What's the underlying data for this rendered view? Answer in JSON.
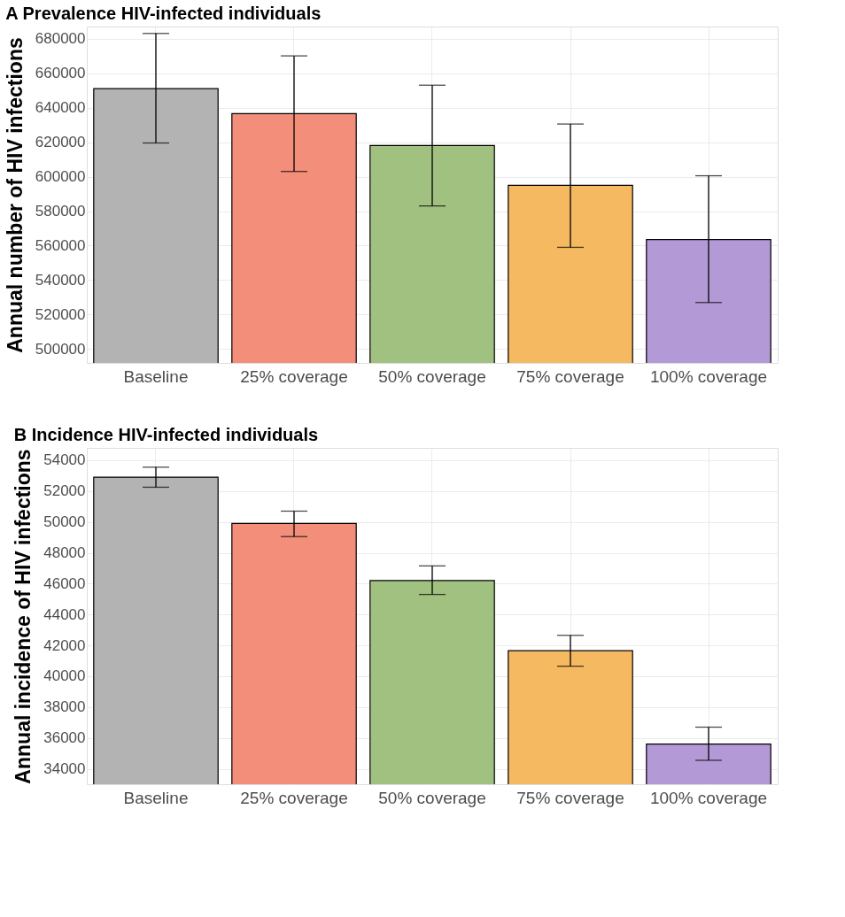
{
  "chart_data": [
    {
      "type": "bar",
      "title": "A  Prevalence HIV-infected individuals",
      "ylabel": "Annual number of HIV infections",
      "categories": [
        "Baseline",
        "25% coverage",
        "50% coverage",
        "75% coverage",
        "100% coverage"
      ],
      "values": [
        651000,
        636500,
        618000,
        595000,
        563500
      ],
      "colors": [
        "#b3b3b3",
        "#f28e7a",
        "#a1c181",
        "#f5b961",
        "#b39ad6"
      ],
      "errors": [
        [
          619500,
          683000
        ],
        [
          603000,
          670000
        ],
        [
          583000,
          653000
        ],
        [
          559000,
          630500
        ],
        [
          527000,
          600500
        ]
      ],
      "ylim": [
        492000,
        687000
      ],
      "yticks": [
        500000,
        520000,
        540000,
        560000,
        580000,
        600000,
        620000,
        640000,
        660000,
        680000
      ],
      "grid": true
    },
    {
      "type": "bar",
      "title": "B  Incidence HIV-infected individuals",
      "ylabel": "Annual incidence of HIV infections",
      "categories": [
        "Baseline",
        "25% coverage",
        "50% coverage",
        "75% coverage",
        "100% coverage"
      ],
      "values": [
        52900,
        49900,
        46200,
        41650,
        35600
      ],
      "colors": [
        "#b3b3b3",
        "#f28e7a",
        "#a1c181",
        "#f5b961",
        "#b39ad6"
      ],
      "errors": [
        [
          52250,
          53550
        ],
        [
          49050,
          50700
        ],
        [
          45300,
          47150
        ],
        [
          40650,
          42650
        ],
        [
          34550,
          36700
        ]
      ],
      "ylim": [
        33000,
        54800
      ],
      "yticks": [
        34000,
        36000,
        38000,
        40000,
        42000,
        44000,
        46000,
        48000,
        50000,
        52000,
        54000
      ],
      "grid": true
    }
  ]
}
